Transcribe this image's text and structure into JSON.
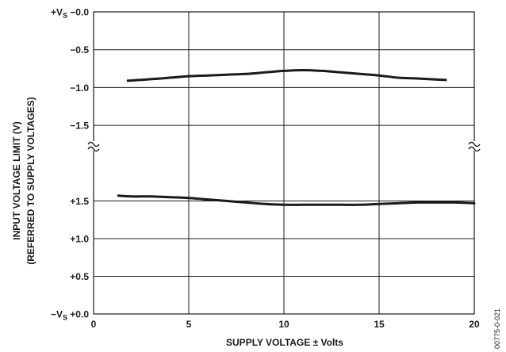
{
  "chart_data": {
    "type": "line",
    "xlabel": "SUPPLY VOLTAGE ± Volts",
    "ylabel_line1": "INPUT VOLTAGE LIMIT (V)",
    "ylabel_line2": "(REFERRED TO SUPPLY VOLTAGES)",
    "xlim": [
      0,
      20
    ],
    "x_ticks": [
      "0",
      "5",
      "10",
      "15",
      "20"
    ],
    "upper_panel": {
      "ylim": [
        -1.75,
        0.0
      ],
      "ticks": [
        {
          "value": 0.0,
          "label": "−0.0",
          "prefix": "+V",
          "sub": "S"
        },
        {
          "value": -0.5,
          "label": "−0.5"
        },
        {
          "value": -1.0,
          "label": "−1.0"
        },
        {
          "value": -1.5,
          "label": "−1.5"
        }
      ]
    },
    "lower_panel": {
      "ylim": [
        0.0,
        2.0
      ],
      "ticks": [
        {
          "value": 1.5,
          "label": "+1.5"
        },
        {
          "value": 1.0,
          "label": "+1.0"
        },
        {
          "value": 0.5,
          "label": "+0.5"
        },
        {
          "value": 0.0,
          "label": "+0.0",
          "prefix": "−V",
          "sub": "S"
        }
      ]
    },
    "series": [
      {
        "panel": "upper",
        "x": [
          1.8,
          3,
          4,
          5,
          6,
          7,
          8,
          9,
          10,
          11,
          12,
          13,
          14,
          15,
          16,
          17,
          18.5
        ],
        "y": [
          -0.91,
          -0.89,
          -0.87,
          -0.85,
          -0.84,
          -0.83,
          -0.82,
          -0.8,
          -0.78,
          -0.77,
          -0.78,
          -0.8,
          -0.82,
          -0.84,
          -0.87,
          -0.88,
          -0.9
        ]
      },
      {
        "panel": "lower",
        "x": [
          1.3,
          2,
          3,
          4,
          5,
          6,
          7,
          8,
          9,
          10,
          11,
          12,
          13,
          14,
          15,
          16,
          17,
          18,
          19,
          20
        ],
        "y": [
          1.57,
          1.56,
          1.56,
          1.55,
          1.54,
          1.52,
          1.5,
          1.48,
          1.46,
          1.45,
          1.45,
          1.45,
          1.45,
          1.45,
          1.46,
          1.47,
          1.48,
          1.48,
          1.48,
          1.47
        ]
      }
    ],
    "axis_break": "≈",
    "grid": true,
    "legend": "none"
  },
  "figure_code": "00775-0-021"
}
